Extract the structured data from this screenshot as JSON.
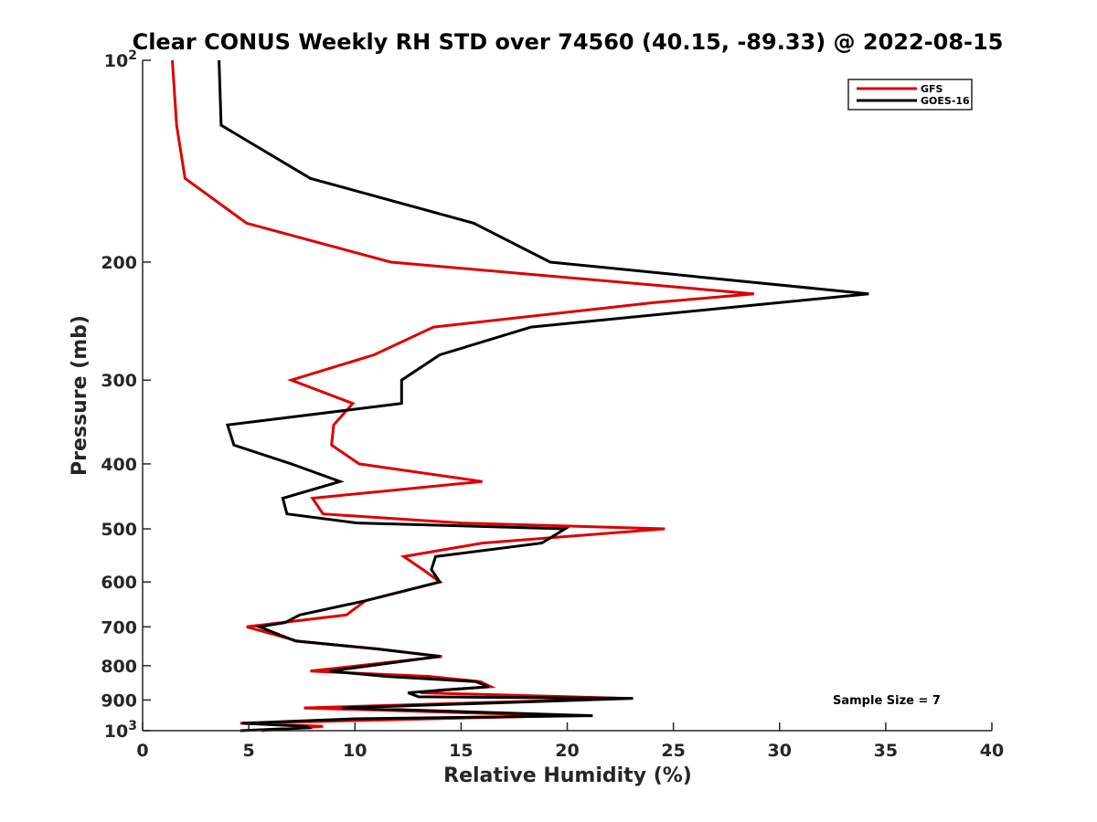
{
  "chart_data": {
    "type": "line",
    "title": "Clear CONUS Weekly RH STD over 74560 (40.15, -89.33) @ 2022-08-15",
    "xlabel": "Relative Humidity (%)",
    "ylabel": "Pressure (mb)",
    "xlim": [
      0,
      40
    ],
    "ylim": [
      100,
      1000
    ],
    "yscale": "log",
    "y_reversed": true,
    "xticks": [
      0,
      5,
      10,
      15,
      20,
      25,
      30,
      35,
      40
    ],
    "yticks": [
      {
        "value": 100,
        "label": "10",
        "sup": "2"
      },
      {
        "value": 200,
        "label": "200"
      },
      {
        "value": 300,
        "label": "300"
      },
      {
        "value": 400,
        "label": "400"
      },
      {
        "value": 500,
        "label": "500"
      },
      {
        "value": 600,
        "label": "600"
      },
      {
        "value": 700,
        "label": "700"
      },
      {
        "value": 800,
        "label": "800"
      },
      {
        "value": 900,
        "label": "900"
      },
      {
        "value": 1000,
        "label": "10",
        "sup": "3"
      }
    ],
    "grid": false,
    "legend_position": "top-right",
    "annotation": "Sample Size = 7",
    "series": [
      {
        "name": "GFS",
        "color": "#dd0000",
        "points": [
          [
            1.4,
            100
          ],
          [
            1.6,
            125
          ],
          [
            2.0,
            150
          ],
          [
            4.9,
            175
          ],
          [
            11.7,
            200
          ],
          [
            28.8,
            223
          ],
          [
            24,
            230
          ],
          [
            13.7,
            250
          ],
          [
            10.9,
            275
          ],
          [
            7.0,
            300
          ],
          [
            9.9,
            325
          ],
          [
            9.0,
            350
          ],
          [
            8.9,
            375
          ],
          [
            10.2,
            400
          ],
          [
            16.0,
            425
          ],
          [
            8.0,
            450
          ],
          [
            8.5,
            475
          ],
          [
            15,
            490
          ],
          [
            24.6,
            500
          ],
          [
            16,
            525
          ],
          [
            12.3,
            550
          ],
          [
            13.2,
            575
          ],
          [
            14,
            600
          ],
          [
            10.5,
            640
          ],
          [
            9.6,
            672
          ],
          [
            4.9,
            700
          ],
          [
            7.3,
            735
          ],
          [
            11,
            755
          ],
          [
            14.1,
            775
          ],
          [
            7.9,
            815
          ],
          [
            13.5,
            830
          ],
          [
            15.9,
            845
          ],
          [
            16.4,
            860
          ],
          [
            14,
            870
          ],
          [
            13.1,
            878
          ],
          [
            22.8,
            895
          ],
          [
            7.6,
            925
          ],
          [
            19.8,
            950
          ],
          [
            4.6,
            975
          ],
          [
            8.5,
            985
          ],
          [
            5.6,
            1000
          ]
        ]
      },
      {
        "name": "GOES-16",
        "color": "#000000",
        "points": [
          [
            3.6,
            100
          ],
          [
            3.7,
            125
          ],
          [
            7.9,
            150
          ],
          [
            15.6,
            175
          ],
          [
            19.2,
            200
          ],
          [
            34.2,
            223
          ],
          [
            18.3,
            250
          ],
          [
            14.0,
            275
          ],
          [
            12.2,
            300
          ],
          [
            12.2,
            325
          ],
          [
            4.0,
            350
          ],
          [
            4.3,
            375
          ],
          [
            7.0,
            400
          ],
          [
            9.3,
            425
          ],
          [
            6.6,
            450
          ],
          [
            6.8,
            475
          ],
          [
            10.1,
            490
          ],
          [
            19.9,
            500
          ],
          [
            18.8,
            525
          ],
          [
            13.8,
            550
          ],
          [
            13.6,
            575
          ],
          [
            14,
            600
          ],
          [
            10.5,
            640
          ],
          [
            7.4,
            672
          ],
          [
            6.7,
            690
          ],
          [
            5.5,
            700
          ],
          [
            7.2,
            735
          ],
          [
            11,
            755
          ],
          [
            14,
            775
          ],
          [
            8.8,
            815
          ],
          [
            11.5,
            830
          ],
          [
            15.7,
            845
          ],
          [
            16.3,
            860
          ],
          [
            12.5,
            878
          ],
          [
            13.0,
            890
          ],
          [
            23.1,
            895
          ],
          [
            9.4,
            925
          ],
          [
            21.2,
            950
          ],
          [
            10,
            960
          ],
          [
            4.7,
            975
          ],
          [
            7.7,
            985
          ],
          [
            7.8,
            990
          ],
          [
            4.6,
            1000
          ]
        ]
      }
    ]
  }
}
